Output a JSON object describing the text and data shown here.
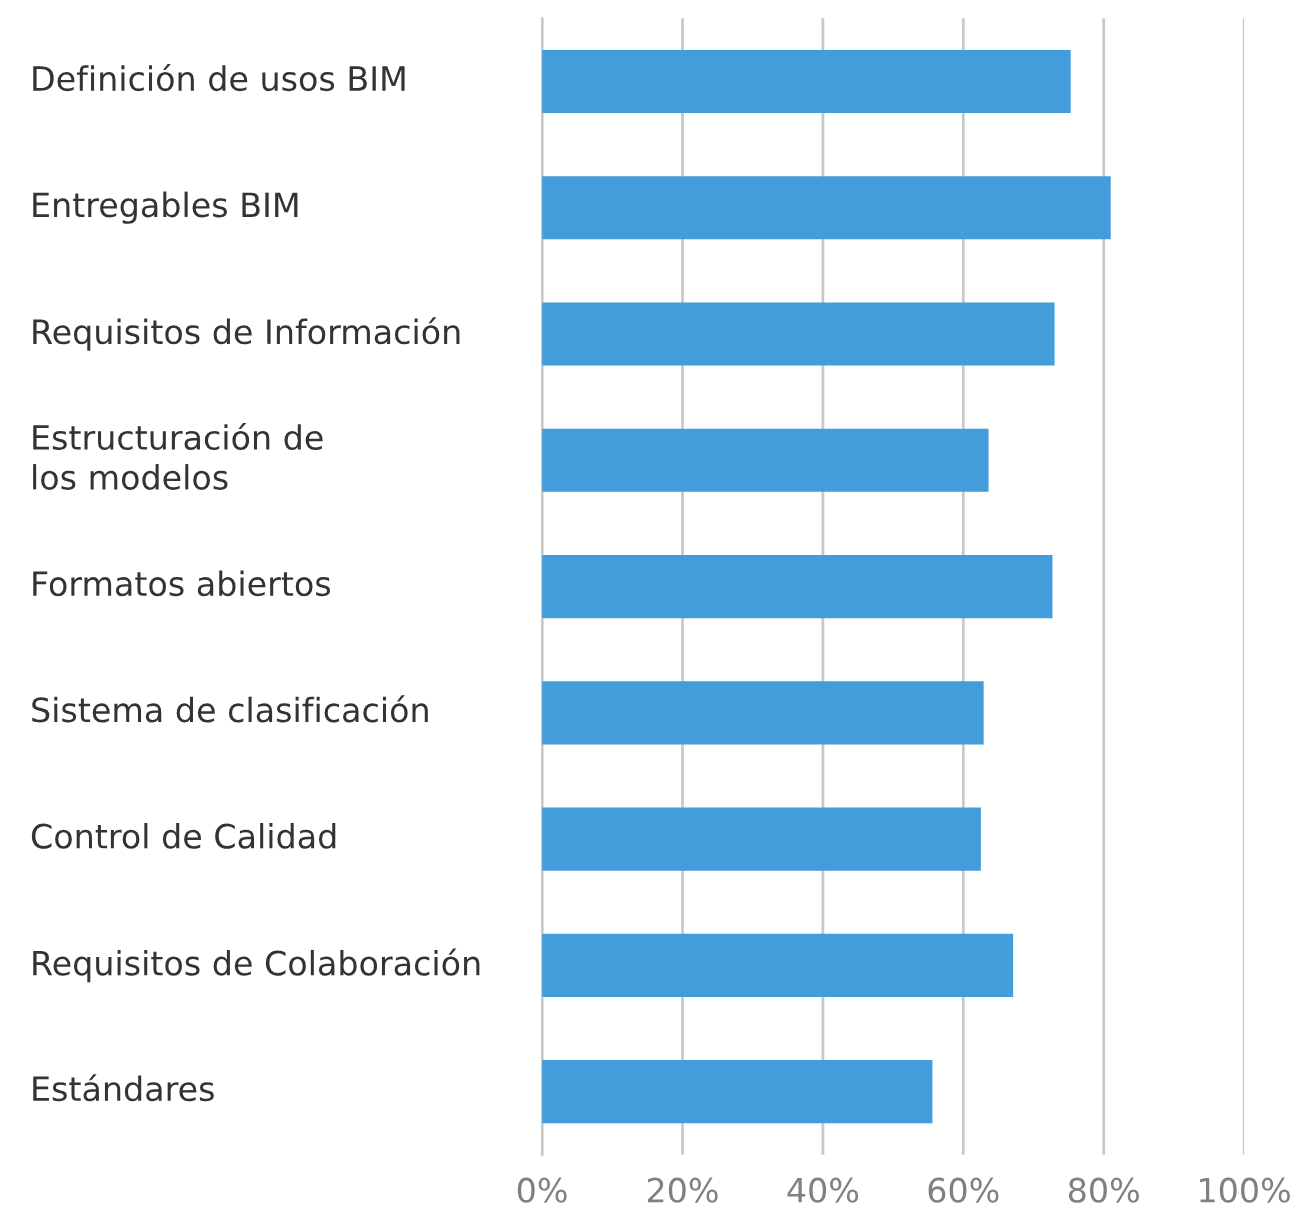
{
  "chart_data": {
    "type": "bar",
    "orientation": "horizontal",
    "categories": [
      "Definición de usos BIM",
      "Entregables BIM",
      "Requisitos de Información",
      "Estructuración de\nlos modelos",
      "Formatos abiertos",
      "Sistema de clasificación",
      "Control de Calidad",
      "Requisitos de Colaboración",
      "Estándares"
    ],
    "values": [
      75.3,
      81.0,
      73.0,
      63.6,
      72.7,
      62.9,
      62.5,
      67.1,
      55.6
    ],
    "color": "#449ddb",
    "xlim": [
      0,
      100
    ],
    "xticks": [
      {
        "value": 0,
        "label": "0%"
      },
      {
        "value": 20,
        "label": "20%"
      },
      {
        "value": 40,
        "label": "40%"
      },
      {
        "value": 60,
        "label": "60%"
      },
      {
        "value": 80,
        "label": "80%"
      },
      {
        "value": 100,
        "label": "100%"
      }
    ],
    "grid": "x"
  }
}
